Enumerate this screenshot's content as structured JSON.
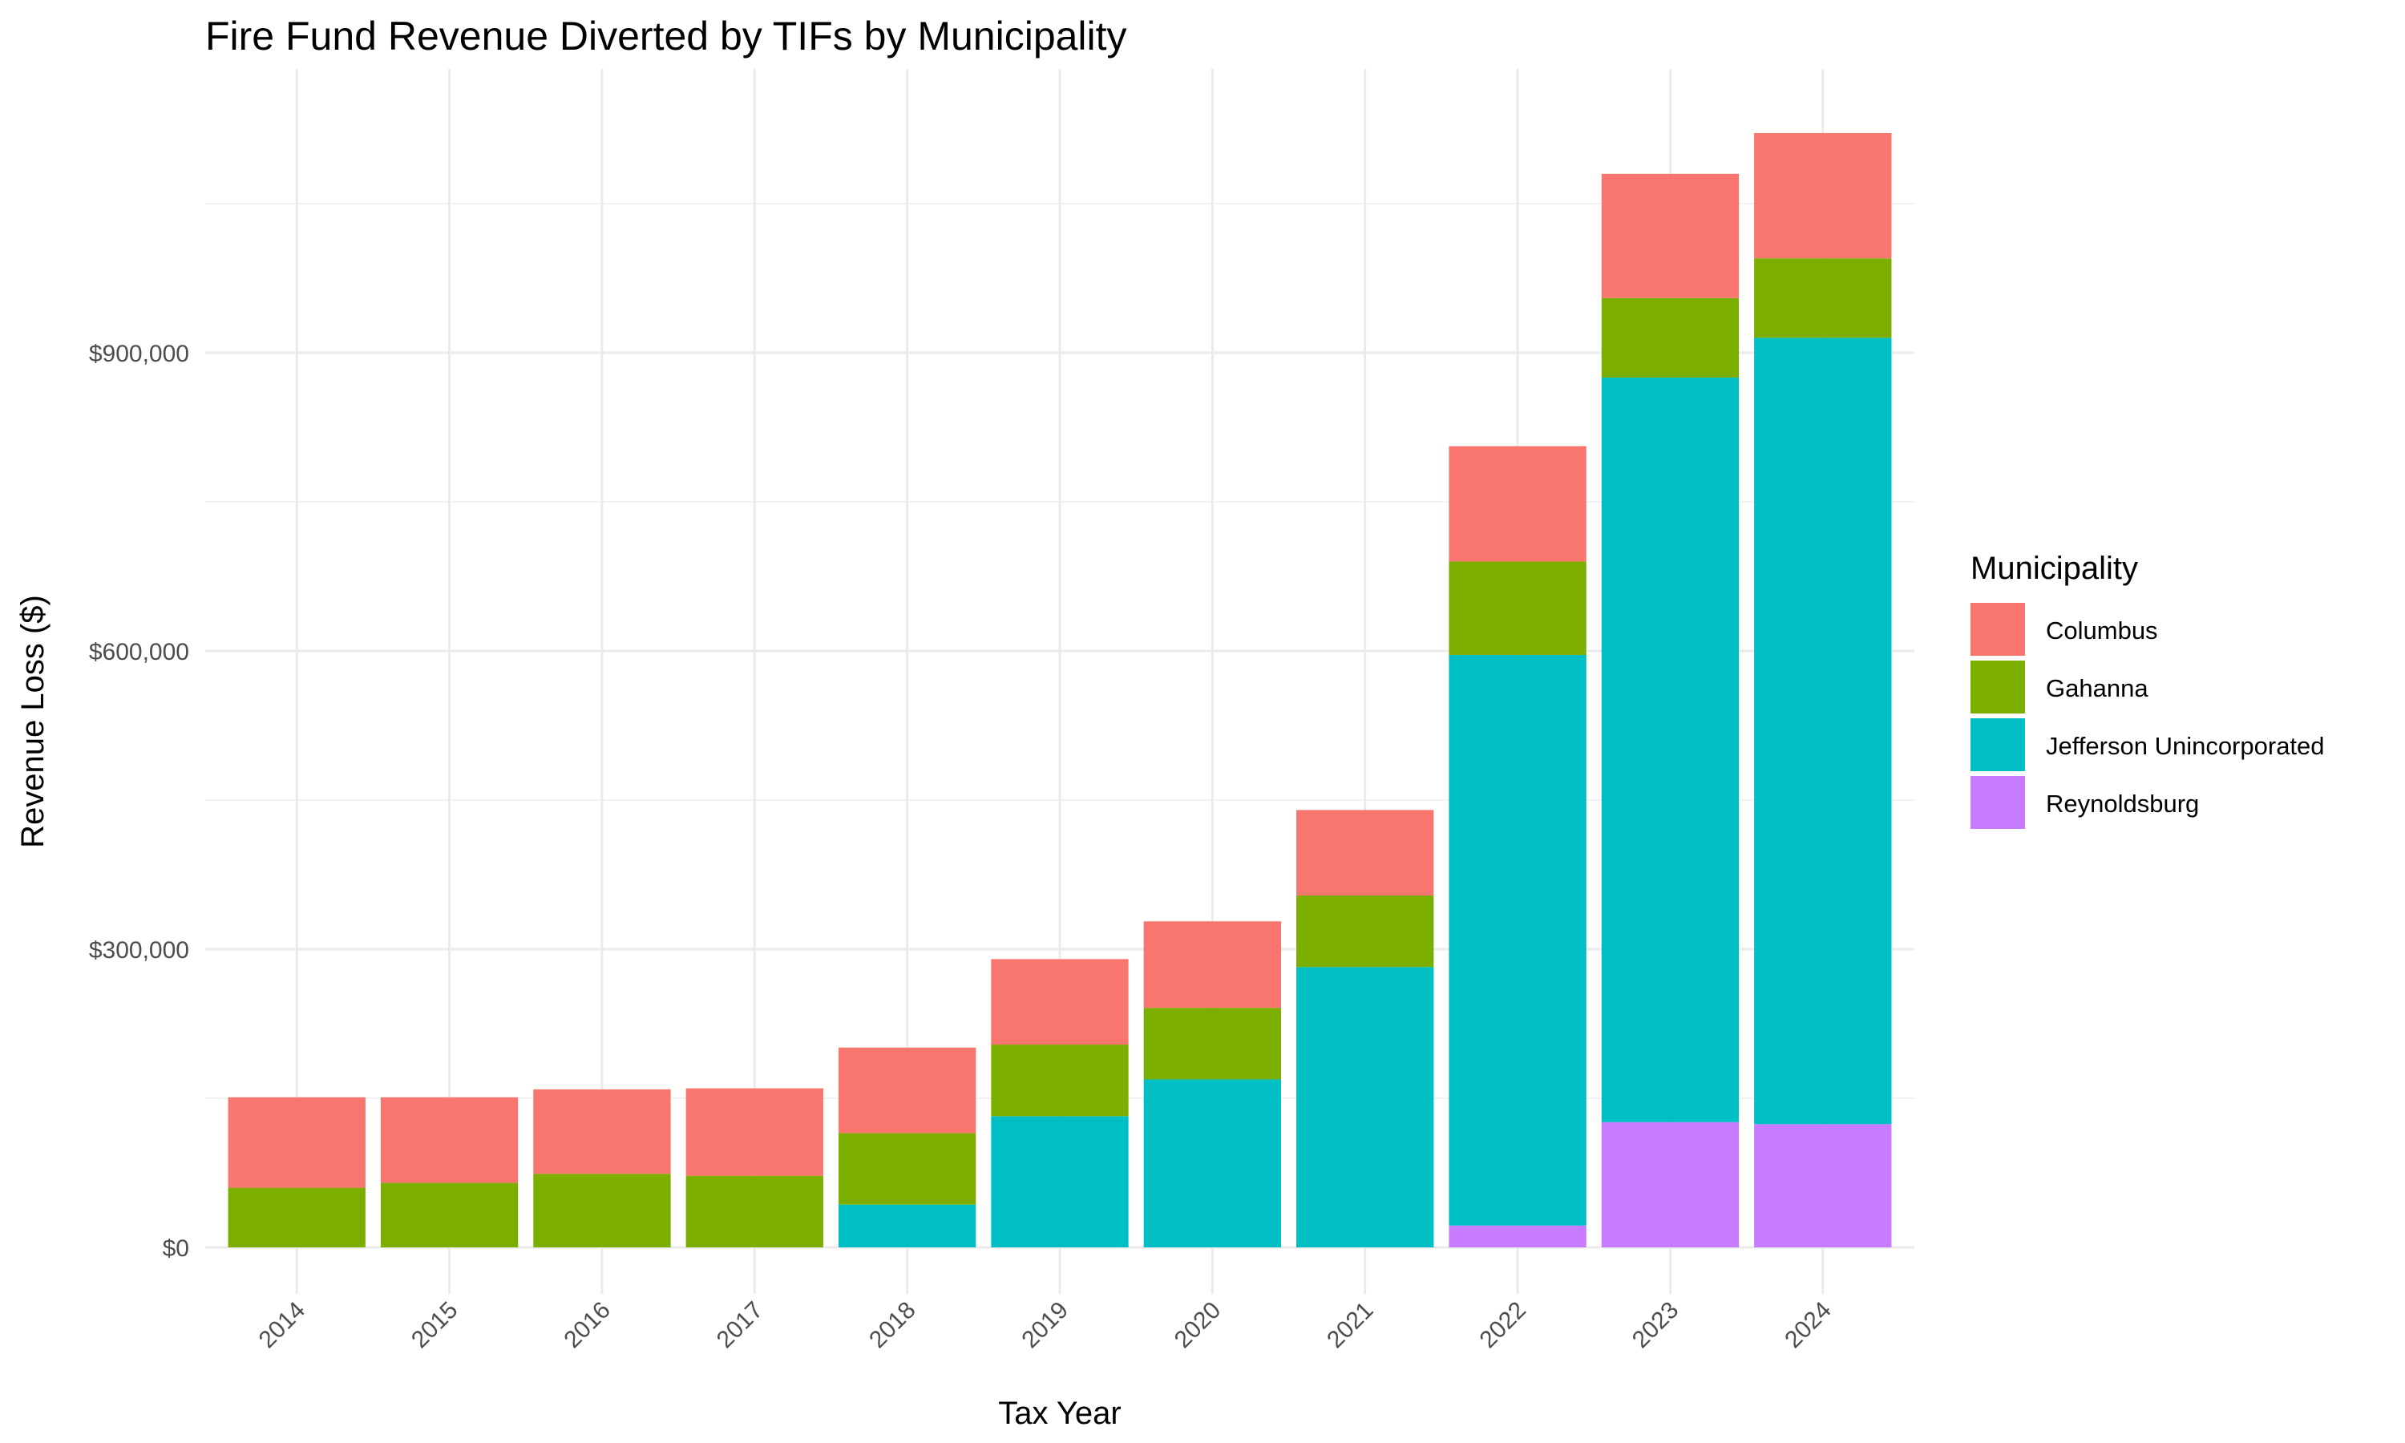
{
  "chart_data": {
    "type": "bar",
    "stacked": true,
    "title": "Fire Fund Revenue Diverted by TIFs by Municipality",
    "xlabel": "Tax Year",
    "ylabel": "Revenue Loss ($)",
    "categories": [
      "2014",
      "2015",
      "2016",
      "2017",
      "2018",
      "2019",
      "2020",
      "2021",
      "2022",
      "2023",
      "2024"
    ],
    "ylim": [
      -50000,
      1160000
    ],
    "y_ticks": [
      0,
      300000,
      600000,
      900000
    ],
    "y_tick_labels": [
      "$0",
      "$300,000",
      "$600,000",
      "$900,000"
    ],
    "grid": true,
    "legend": {
      "title": "Municipality",
      "position": "right"
    },
    "stack_order_bottom_to_top": [
      "Reynoldsburg",
      "Jefferson Unincorporated",
      "Gahanna",
      "Columbus"
    ],
    "series": [
      {
        "name": "Columbus",
        "color": "#F8766D",
        "values": [
          91000,
          86000,
          85000,
          88000,
          86000,
          86000,
          87000,
          86000,
          116000,
          125000,
          126000
        ]
      },
      {
        "name": "Gahanna",
        "color": "#7CAE00",
        "values": [
          60000,
          65000,
          74000,
          72000,
          72000,
          72000,
          72000,
          72000,
          94000,
          80000,
          80000
        ]
      },
      {
        "name": "Jefferson Unincorporated",
        "color": "#00BFC4",
        "values": [
          0,
          0,
          0,
          0,
          43000,
          132000,
          169000,
          282000,
          574000,
          749000,
          791000
        ]
      },
      {
        "name": "Reynoldsburg",
        "color": "#C77CFF",
        "values": [
          0,
          0,
          0,
          0,
          0,
          0,
          0,
          0,
          22000,
          126000,
          124000
        ]
      }
    ]
  }
}
